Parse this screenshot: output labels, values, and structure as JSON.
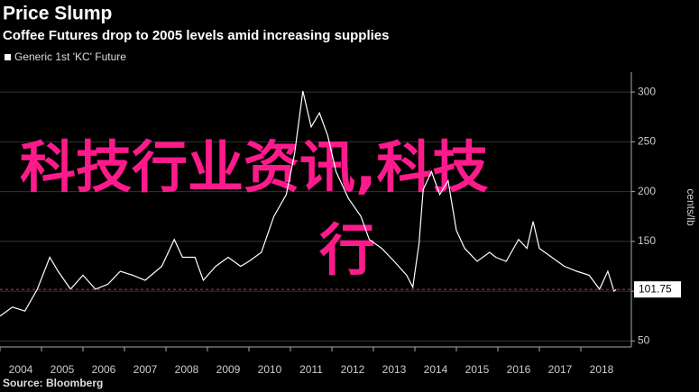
{
  "chart_data": {
    "type": "line",
    "title": "Price Slump",
    "subtitle": "Coffee Futures drop to 2005 levels amid increasing supplies",
    "y_label": "cents/lb",
    "source": "Source: Bloomberg",
    "watermark": [
      "科技行业资讯,科技",
      "行"
    ],
    "x": [
      2004.0,
      2004.3,
      2004.6,
      2004.9,
      2005.2,
      2005.4,
      2005.7,
      2006.0,
      2006.3,
      2006.6,
      2006.9,
      2007.2,
      2007.5,
      2007.9,
      2008.2,
      2008.4,
      2008.7,
      2008.9,
      2009.2,
      2009.5,
      2009.8,
      2010.0,
      2010.3,
      2010.6,
      2010.9,
      2011.1,
      2011.3,
      2011.5,
      2011.7,
      2011.9,
      2012.1,
      2012.4,
      2012.7,
      2012.9,
      2013.2,
      2013.5,
      2013.8,
      2013.95,
      2014.1,
      2014.2,
      2014.4,
      2014.6,
      2014.8,
      2015.0,
      2015.2,
      2015.5,
      2015.8,
      2015.95,
      2016.2,
      2016.5,
      2016.7,
      2016.85,
      2017.0,
      2017.3,
      2017.6,
      2017.9,
      2018.2,
      2018.45,
      2018.65,
      2018.8,
      2018.85
    ],
    "series": [
      {
        "name": "Generic 1st 'KC' Future",
        "color": "#ffffff",
        "values": [
          75,
          84,
          80,
          102,
          134,
          120,
          102,
          116,
          102,
          107,
          120,
          116,
          111,
          125,
          152,
          134,
          134,
          111,
          125,
          134,
          125,
          130,
          139,
          175,
          197,
          238,
          301,
          265,
          279,
          256,
          220,
          193,
          175,
          152,
          143,
          130,
          116,
          104,
          148,
          202,
          220,
          197,
          211,
          161,
          143,
          130,
          139,
          134,
          130,
          152,
          143,
          170,
          143,
          134,
          125,
          120,
          116,
          102,
          120,
          100,
          101.75
        ]
      }
    ],
    "xlim": [
      2004,
      2019
    ],
    "xticks": [
      2004,
      2005,
      2006,
      2007,
      2008,
      2009,
      2010,
      2011,
      2012,
      2013,
      2014,
      2015,
      2016,
      2017,
      2018
    ],
    "ylim": [
      44,
      320
    ],
    "yticks": [
      50,
      100,
      150,
      200,
      250,
      300
    ],
    "grid": true,
    "last_value_line": true
  }
}
